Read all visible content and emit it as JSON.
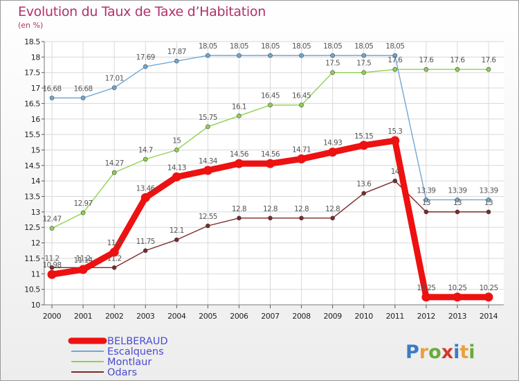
{
  "header": {
    "title": "Evolution du Taux de Taxe d’Habitation",
    "subtitle": "(en %)"
  },
  "logo": {
    "text": "Proxiti",
    "colors": [
      "#3a7cc3",
      "#e8a23a",
      "#6aaa3a",
      "#d43a2a"
    ]
  },
  "chart_data": {
    "type": "line",
    "x": [
      2000,
      2001,
      2002,
      2003,
      2004,
      2005,
      2006,
      2007,
      2008,
      2009,
      2010,
      2011,
      2012,
      2013,
      2014
    ],
    "ylim": [
      10,
      18.5
    ],
    "yticks": [
      10,
      10.5,
      11,
      11.5,
      12,
      12.5,
      13,
      13.5,
      14,
      14.5,
      15,
      15.5,
      16,
      16.5,
      17,
      17.5,
      18,
      18.5
    ],
    "grid": true,
    "legend_position": "bottom-left",
    "series": [
      {
        "name": "BELBERAUD",
        "color": "#ee1111",
        "thick": true,
        "values": [
          10.98,
          11.14,
          11.7,
          13.46,
          14.13,
          14.34,
          14.56,
          14.56,
          14.71,
          14.93,
          15.15,
          15.3,
          10.25,
          10.25,
          10.25
        ],
        "labels": [
          "10.98",
          "11.14",
          "11.7",
          "13.46",
          "14.13",
          "14.34",
          "14.56",
          "14.56",
          "14.71",
          "14.93",
          "15.15",
          "15.3",
          "10.25",
          "10.25",
          "10.25"
        ]
      },
      {
        "name": "Escalquens",
        "color": "#6fa8d6",
        "thick": false,
        "values": [
          16.68,
          16.68,
          17.01,
          17.69,
          17.87,
          18.05,
          18.05,
          18.05,
          18.05,
          18.05,
          18.05,
          18.05,
          13.39,
          13.39,
          13.39
        ],
        "labels": [
          "16.68",
          "16.68",
          "17.01",
          "17.69",
          "17.87",
          "18.05",
          "18.05",
          "18.05",
          "18.05",
          "18.05",
          "18.05",
          "18.05",
          "13.39",
          "13.39",
          "13.39"
        ]
      },
      {
        "name": "Montlaur",
        "color": "#8fd14f",
        "thick": false,
        "values": [
          12.47,
          12.97,
          14.27,
          14.7,
          15,
          15.75,
          16.1,
          16.45,
          16.45,
          17.5,
          17.5,
          17.6,
          17.6,
          17.6,
          17.6
        ],
        "labels": [
          "12.47",
          "12.97",
          "14.27",
          "14.7",
          "15",
          "15.75",
          "16.1",
          "16.45",
          "16.45",
          "17.5",
          "17.5",
          "17.6",
          "17.6",
          "17.6",
          "17.6"
        ]
      },
      {
        "name": "Odars",
        "color": "#7a2a2a",
        "thick": false,
        "values": [
          11.2,
          11.2,
          11.2,
          11.75,
          12.1,
          12.55,
          12.8,
          12.8,
          12.8,
          12.8,
          13.6,
          14,
          13,
          13,
          13
        ],
        "labels": [
          "11.2",
          "11.2",
          "11.2",
          "11.75",
          "12.1",
          "12.55",
          "12.8",
          "12.8",
          "12.8",
          "12.8",
          "13.6",
          "14",
          "13",
          "13",
          "13"
        ]
      }
    ]
  }
}
